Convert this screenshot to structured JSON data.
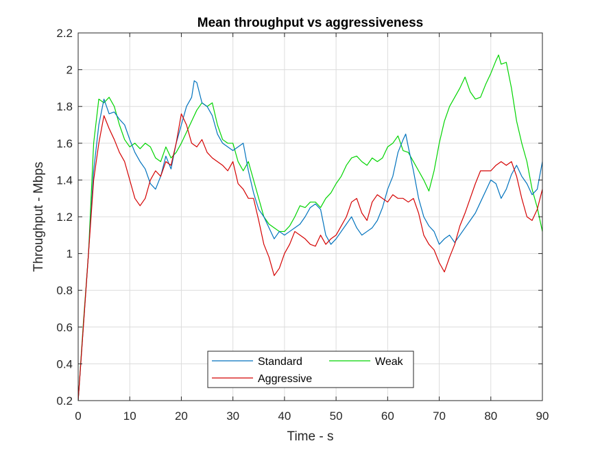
{
  "chart_data": {
    "type": "line",
    "title": "Mean throughput vs aggressiveness",
    "xlabel": "Time - s",
    "ylabel": "Throughput - Mbps",
    "xlim": [
      0,
      90
    ],
    "ylim": [
      0.2,
      2.2
    ],
    "xticks": [
      0,
      10,
      20,
      30,
      40,
      50,
      60,
      70,
      80,
      90
    ],
    "yticks": [
      0.2,
      0.4,
      0.6,
      0.8,
      1,
      1.2,
      1.4,
      1.6,
      1.8,
      2,
      2.2
    ],
    "xtick_labels": [
      "0",
      "10",
      "20",
      "30",
      "40",
      "50",
      "60",
      "70",
      "80",
      "90"
    ],
    "ytick_labels": [
      "0.2",
      "0.4",
      "0.6",
      "0.8",
      "1",
      "1.2",
      "1.4",
      "1.6",
      "1.8",
      "2",
      "2.2"
    ],
    "grid": true,
    "legend_position": "bottom-center",
    "series": [
      {
        "name": "Standard",
        "color": "#0072BD",
        "points": [
          [
            0,
            0.2
          ],
          [
            1,
            0.6
          ],
          [
            2,
            1.0
          ],
          [
            3,
            1.45
          ],
          [
            4,
            1.7
          ],
          [
            5,
            1.84
          ],
          [
            6,
            1.76
          ],
          [
            7,
            1.77
          ],
          [
            8,
            1.73
          ],
          [
            9,
            1.7
          ],
          [
            10,
            1.62
          ],
          [
            11,
            1.55
          ],
          [
            12,
            1.5
          ],
          [
            13,
            1.46
          ],
          [
            14,
            1.38
          ],
          [
            15,
            1.35
          ],
          [
            16,
            1.42
          ],
          [
            17,
            1.53
          ],
          [
            18,
            1.46
          ],
          [
            19,
            1.6
          ],
          [
            20,
            1.7
          ],
          [
            21,
            1.8
          ],
          [
            22,
            1.85
          ],
          [
            22.5,
            1.94
          ],
          [
            23,
            1.93
          ],
          [
            24,
            1.82
          ],
          [
            25,
            1.8
          ],
          [
            26,
            1.75
          ],
          [
            27,
            1.65
          ],
          [
            28,
            1.6
          ],
          [
            29,
            1.58
          ],
          [
            30,
            1.56
          ],
          [
            31,
            1.58
          ],
          [
            32,
            1.6
          ],
          [
            33,
            1.45
          ],
          [
            34,
            1.33
          ],
          [
            35,
            1.24
          ],
          [
            36,
            1.2
          ],
          [
            37,
            1.14
          ],
          [
            38,
            1.08
          ],
          [
            39,
            1.12
          ],
          [
            40,
            1.1
          ],
          [
            41,
            1.12
          ],
          [
            42,
            1.14
          ],
          [
            43,
            1.16
          ],
          [
            44,
            1.2
          ],
          [
            45,
            1.25
          ],
          [
            46,
            1.27
          ],
          [
            47,
            1.24
          ],
          [
            48,
            1.1
          ],
          [
            49,
            1.05
          ],
          [
            50,
            1.08
          ],
          [
            51,
            1.12
          ],
          [
            52,
            1.16
          ],
          [
            53,
            1.2
          ],
          [
            54,
            1.14
          ],
          [
            55,
            1.1
          ],
          [
            56,
            1.12
          ],
          [
            57,
            1.14
          ],
          [
            58,
            1.18
          ],
          [
            59,
            1.25
          ],
          [
            60,
            1.35
          ],
          [
            61,
            1.42
          ],
          [
            62,
            1.55
          ],
          [
            63,
            1.62
          ],
          [
            63.5,
            1.65
          ],
          [
            64,
            1.58
          ],
          [
            65,
            1.45
          ],
          [
            66,
            1.3
          ],
          [
            67,
            1.2
          ],
          [
            68,
            1.15
          ],
          [
            69,
            1.12
          ],
          [
            70,
            1.05
          ],
          [
            71,
            1.08
          ],
          [
            72,
            1.1
          ],
          [
            73,
            1.06
          ],
          [
            74,
            1.1
          ],
          [
            75,
            1.14
          ],
          [
            76,
            1.18
          ],
          [
            77,
            1.22
          ],
          [
            78,
            1.28
          ],
          [
            79,
            1.34
          ],
          [
            80,
            1.4
          ],
          [
            81,
            1.38
          ],
          [
            82,
            1.3
          ],
          [
            83,
            1.35
          ],
          [
            84,
            1.43
          ],
          [
            85,
            1.48
          ],
          [
            86,
            1.42
          ],
          [
            87,
            1.38
          ],
          [
            88,
            1.32
          ],
          [
            89,
            1.35
          ],
          [
            90,
            1.5
          ]
        ]
      },
      {
        "name": "Weak",
        "color": "#00D400",
        "points": [
          [
            0,
            0.2
          ],
          [
            1,
            0.62
          ],
          [
            2,
            1.0
          ],
          [
            3,
            1.6
          ],
          [
            4,
            1.84
          ],
          [
            5,
            1.82
          ],
          [
            6,
            1.85
          ],
          [
            7,
            1.8
          ],
          [
            8,
            1.7
          ],
          [
            9,
            1.62
          ],
          [
            10,
            1.58
          ],
          [
            11,
            1.6
          ],
          [
            12,
            1.57
          ],
          [
            13,
            1.6
          ],
          [
            14,
            1.58
          ],
          [
            15,
            1.52
          ],
          [
            16,
            1.5
          ],
          [
            17,
            1.58
          ],
          [
            18,
            1.52
          ],
          [
            19,
            1.55
          ],
          [
            20,
            1.6
          ],
          [
            21,
            1.66
          ],
          [
            22,
            1.72
          ],
          [
            23,
            1.78
          ],
          [
            24,
            1.82
          ],
          [
            25,
            1.8
          ],
          [
            26,
            1.82
          ],
          [
            27,
            1.7
          ],
          [
            28,
            1.62
          ],
          [
            29,
            1.6
          ],
          [
            30,
            1.6
          ],
          [
            31,
            1.5
          ],
          [
            32,
            1.45
          ],
          [
            33,
            1.5
          ],
          [
            34,
            1.4
          ],
          [
            35,
            1.3
          ],
          [
            36,
            1.2
          ],
          [
            37,
            1.16
          ],
          [
            38,
            1.14
          ],
          [
            39,
            1.12
          ],
          [
            40,
            1.12
          ],
          [
            41,
            1.15
          ],
          [
            42,
            1.2
          ],
          [
            43,
            1.26
          ],
          [
            44,
            1.25
          ],
          [
            45,
            1.28
          ],
          [
            46,
            1.28
          ],
          [
            47,
            1.25
          ],
          [
            48,
            1.3
          ],
          [
            49,
            1.33
          ],
          [
            50,
            1.38
          ],
          [
            51,
            1.42
          ],
          [
            52,
            1.48
          ],
          [
            53,
            1.52
          ],
          [
            54,
            1.53
          ],
          [
            55,
            1.5
          ],
          [
            56,
            1.48
          ],
          [
            57,
            1.52
          ],
          [
            58,
            1.5
          ],
          [
            59,
            1.52
          ],
          [
            60,
            1.58
          ],
          [
            61,
            1.6
          ],
          [
            62,
            1.64
          ],
          [
            63,
            1.56
          ],
          [
            64,
            1.55
          ],
          [
            65,
            1.5
          ],
          [
            66,
            1.45
          ],
          [
            67,
            1.4
          ],
          [
            68,
            1.34
          ],
          [
            69,
            1.45
          ],
          [
            70,
            1.6
          ],
          [
            71,
            1.72
          ],
          [
            72,
            1.8
          ],
          [
            73,
            1.85
          ],
          [
            74,
            1.9
          ],
          [
            75,
            1.96
          ],
          [
            76,
            1.88
          ],
          [
            77,
            1.84
          ],
          [
            78,
            1.85
          ],
          [
            79,
            1.92
          ],
          [
            80,
            1.98
          ],
          [
            81,
            2.05
          ],
          [
            81.5,
            2.08
          ],
          [
            82,
            2.03
          ],
          [
            83,
            2.04
          ],
          [
            84,
            1.9
          ],
          [
            85,
            1.72
          ],
          [
            86,
            1.6
          ],
          [
            87,
            1.5
          ],
          [
            88,
            1.35
          ],
          [
            89,
            1.25
          ],
          [
            90,
            1.12
          ]
        ]
      },
      {
        "name": "Aggressive",
        "color": "#D40000",
        "points": [
          [
            0,
            0.2
          ],
          [
            1,
            0.6
          ],
          [
            2,
            1.0
          ],
          [
            3,
            1.4
          ],
          [
            4,
            1.6
          ],
          [
            5,
            1.75
          ],
          [
            6,
            1.68
          ],
          [
            7,
            1.62
          ],
          [
            8,
            1.55
          ],
          [
            9,
            1.5
          ],
          [
            10,
            1.4
          ],
          [
            11,
            1.3
          ],
          [
            12,
            1.26
          ],
          [
            13,
            1.3
          ],
          [
            14,
            1.4
          ],
          [
            15,
            1.45
          ],
          [
            16,
            1.42
          ],
          [
            17,
            1.5
          ],
          [
            18,
            1.48
          ],
          [
            19,
            1.6
          ],
          [
            20,
            1.76
          ],
          [
            21,
            1.7
          ],
          [
            22,
            1.6
          ],
          [
            23,
            1.58
          ],
          [
            24,
            1.62
          ],
          [
            25,
            1.55
          ],
          [
            26,
            1.52
          ],
          [
            27,
            1.5
          ],
          [
            28,
            1.48
          ],
          [
            29,
            1.45
          ],
          [
            30,
            1.5
          ],
          [
            31,
            1.38
          ],
          [
            32,
            1.35
          ],
          [
            33,
            1.3
          ],
          [
            34,
            1.3
          ],
          [
            35,
            1.18
          ],
          [
            36,
            1.05
          ],
          [
            37,
            0.98
          ],
          [
            38,
            0.88
          ],
          [
            39,
            0.92
          ],
          [
            40,
            1.0
          ],
          [
            41,
            1.05
          ],
          [
            42,
            1.12
          ],
          [
            43,
            1.1
          ],
          [
            44,
            1.08
          ],
          [
            45,
            1.05
          ],
          [
            46,
            1.04
          ],
          [
            47,
            1.1
          ],
          [
            48,
            1.05
          ],
          [
            49,
            1.08
          ],
          [
            50,
            1.1
          ],
          [
            51,
            1.15
          ],
          [
            52,
            1.2
          ],
          [
            53,
            1.28
          ],
          [
            54,
            1.3
          ],
          [
            55,
            1.22
          ],
          [
            56,
            1.18
          ],
          [
            57,
            1.28
          ],
          [
            58,
            1.32
          ],
          [
            59,
            1.3
          ],
          [
            60,
            1.28
          ],
          [
            61,
            1.32
          ],
          [
            62,
            1.3
          ],
          [
            63,
            1.3
          ],
          [
            64,
            1.28
          ],
          [
            65,
            1.3
          ],
          [
            66,
            1.22
          ],
          [
            67,
            1.1
          ],
          [
            68,
            1.05
          ],
          [
            69,
            1.02
          ],
          [
            70,
            0.95
          ],
          [
            71,
            0.9
          ],
          [
            72,
            0.98
          ],
          [
            73,
            1.05
          ],
          [
            74,
            1.15
          ],
          [
            75,
            1.22
          ],
          [
            76,
            1.3
          ],
          [
            77,
            1.38
          ],
          [
            78,
            1.45
          ],
          [
            79,
            1.45
          ],
          [
            80,
            1.45
          ],
          [
            81,
            1.48
          ],
          [
            82,
            1.5
          ],
          [
            83,
            1.48
          ],
          [
            84,
            1.5
          ],
          [
            85,
            1.42
          ],
          [
            86,
            1.3
          ],
          [
            87,
            1.2
          ],
          [
            88,
            1.18
          ],
          [
            89,
            1.24
          ],
          [
            90,
            1.35
          ]
        ]
      }
    ]
  }
}
